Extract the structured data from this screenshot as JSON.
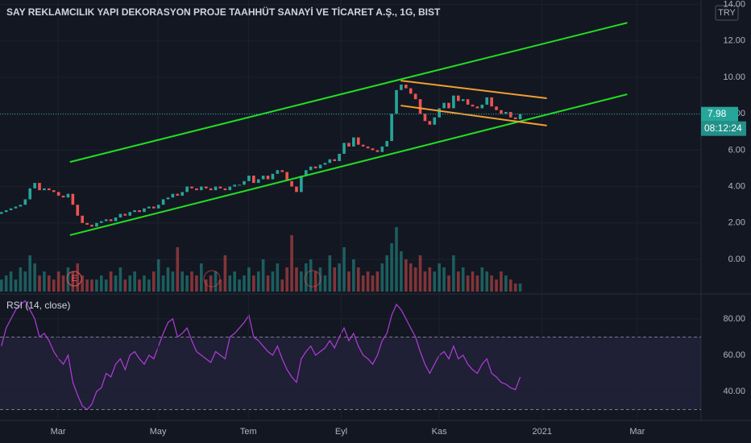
{
  "chart_data": {
    "type": "candlestick",
    "title": "SAY REKLAMCILIK YAPI DEKORASYON PROJE TAAHHÜT SANAYİ VE TİCARET A.Ş., 1G, BIST",
    "currency": "TRY",
    "last_price": 7.98,
    "countdown": "08:12:24",
    "up_color": "#26a69a",
    "down_color": "#ef5350",
    "xlim": [
      -0.3,
      147
    ],
    "xticks": [
      {
        "value": 11.9,
        "label": "Mar"
      },
      {
        "value": 32.9,
        "label": "May"
      },
      {
        "value": 51.9,
        "label": "Tem"
      },
      {
        "value": 71.4,
        "label": "Eyl"
      },
      {
        "value": 92,
        "label": "Kas"
      },
      {
        "value": 113.6,
        "label": "2021"
      },
      {
        "value": 133.6,
        "label": "Mar"
      }
    ],
    "ylim": [
      -1.77,
      14.25
    ],
    "yticks": [
      {
        "value": 0,
        "label": "0.00"
      },
      {
        "value": 2,
        "label": "2.00"
      },
      {
        "value": 4,
        "label": "4.00"
      },
      {
        "value": 6,
        "label": "6.00"
      },
      {
        "value": 8,
        "label": "8.00"
      },
      {
        "value": 10,
        "label": "10.00"
      },
      {
        "value": 12,
        "label": "12.00"
      },
      {
        "value": 14,
        "label": "14.00"
      }
    ],
    "open": [
      2.5,
      2.6,
      2.7,
      2.8,
      2.9,
      3.0,
      3.3,
      3.9,
      4.2,
      3.8,
      3.9,
      3.8,
      3.7,
      3.5,
      3.4,
      3.6,
      3.0,
      2.4,
      2.0,
      1.9,
      1.8,
      2.0,
      2.1,
      2.2,
      2.1,
      2.3,
      2.5,
      2.4,
      2.6,
      2.7,
      2.6,
      2.8,
      2.9,
      2.8,
      3.0,
      3.3,
      3.4,
      3.6,
      3.5,
      3.7,
      4.0,
      3.9,
      3.8,
      4.0,
      3.9,
      3.8,
      4.0,
      3.9,
      3.8,
      4.0,
      4.1,
      4.1,
      4.3,
      4.6,
      4.2,
      4.4,
      4.6,
      4.4,
      4.7,
      4.9,
      4.8,
      4.3,
      4.0,
      3.7,
      4.6,
      4.9,
      5.1,
      5.0,
      5.2,
      5.3,
      5.5,
      5.4,
      5.8,
      6.4,
      6.2,
      6.7,
      6.3,
      6.2,
      6.1,
      6.0,
      5.9,
      6.2,
      6.5,
      8.0,
      9.3,
      9.6,
      9.4,
      9.1,
      8.8,
      8.0,
      7.6,
      7.4,
      7.8,
      8.3,
      8.6,
      8.3,
      9.0,
      8.7,
      8.8,
      8.5,
      8.4,
      8.3,
      8.5,
      8.9,
      8.4,
      8.2,
      8.0,
      8.1,
      7.8,
      7.7
    ],
    "close": [
      2.6,
      2.7,
      2.8,
      2.9,
      3.0,
      3.3,
      3.9,
      4.2,
      3.8,
      3.9,
      3.8,
      3.7,
      3.5,
      3.4,
      3.6,
      3.0,
      2.4,
      2.0,
      1.9,
      1.8,
      2.0,
      2.1,
      2.2,
      2.1,
      2.3,
      2.5,
      2.4,
      2.6,
      2.7,
      2.6,
      2.8,
      2.9,
      2.8,
      3.0,
      3.3,
      3.4,
      3.6,
      3.5,
      3.7,
      4.0,
      3.9,
      3.8,
      4.0,
      3.9,
      3.8,
      4.0,
      3.9,
      3.8,
      4.0,
      4.1,
      4.1,
      4.3,
      4.6,
      4.2,
      4.4,
      4.6,
      4.4,
      4.7,
      4.9,
      4.8,
      4.3,
      4.0,
      3.7,
      4.6,
      4.9,
      5.1,
      5.0,
      5.2,
      5.3,
      5.5,
      5.4,
      5.8,
      6.4,
      6.2,
      6.7,
      6.3,
      6.2,
      6.1,
      6.0,
      5.9,
      6.2,
      6.5,
      8.0,
      9.3,
      9.6,
      9.4,
      9.1,
      8.8,
      8.0,
      7.6,
      7.4,
      7.8,
      8.3,
      8.6,
      8.3,
      9.0,
      8.7,
      8.8,
      8.5,
      8.4,
      8.3,
      8.5,
      8.9,
      8.4,
      8.2,
      8.0,
      8.1,
      7.8,
      7.7,
      7.98
    ],
    "volume": [
      3,
      4,
      5,
      3,
      6,
      5,
      9,
      7,
      4,
      5,
      4,
      3,
      5,
      4,
      6,
      5,
      7,
      4,
      3,
      3,
      3,
      4,
      3,
      5,
      4,
      6,
      3,
      4,
      5,
      3,
      4,
      3,
      5,
      8,
      4,
      6,
      5,
      11,
      5,
      4,
      5,
      4,
      7,
      3,
      4,
      5,
      3,
      9,
      4,
      5,
      3,
      4,
      6,
      4,
      5,
      8,
      4,
      5,
      7,
      3,
      6,
      14,
      6,
      5,
      7,
      8,
      5,
      6,
      4,
      9,
      6,
      7,
      11,
      5,
      8,
      6,
      4,
      5,
      4,
      5,
      7,
      9,
      12,
      16,
      10,
      8,
      7,
      6,
      9,
      5,
      6,
      5,
      7,
      6,
      4,
      9,
      5,
      6,
      4,
      5,
      4,
      6,
      5,
      4,
      3,
      5,
      4,
      3,
      2,
      2
    ],
    "volume_ylim": [
      0,
      20
    ],
    "trend_lines": [
      {
        "color": "#22dd22",
        "x": [
          14.4,
          131.5
        ],
        "y": [
          5.35,
          13.0
        ]
      },
      {
        "color": "#22dd22",
        "x": [
          14.4,
          131.5
        ],
        "y": [
          1.33,
          9.07
        ]
      },
      {
        "color": "#f0a030",
        "x": [
          83.9,
          114.6
        ],
        "y": [
          9.82,
          8.85
        ]
      },
      {
        "color": "#f0a030",
        "x": [
          83.9,
          114.6
        ],
        "y": [
          8.45,
          7.35
        ]
      }
    ],
    "events": [
      {
        "x": 15.3,
        "label": "E"
      }
    ],
    "rsi": {
      "title": "RSI (14, close)",
      "color": "#b03ddb",
      "values": [
        65,
        75,
        80,
        85,
        88,
        90,
        85,
        80,
        70,
        72,
        68,
        62,
        58,
        55,
        60,
        45,
        38,
        32,
        30,
        33,
        40,
        42,
        50,
        48,
        55,
        58,
        52,
        60,
        62,
        58,
        55,
        60,
        58,
        65,
        72,
        78,
        80,
        70,
        72,
        75,
        68,
        62,
        60,
        58,
        56,
        62,
        60,
        58,
        70,
        72,
        75,
        78,
        82,
        70,
        68,
        65,
        62,
        60,
        65,
        58,
        52,
        48,
        45,
        58,
        62,
        65,
        60,
        62,
        64,
        68,
        64,
        70,
        75,
        68,
        72,
        65,
        60,
        58,
        55,
        60,
        68,
        72,
        82,
        88,
        85,
        80,
        75,
        70,
        62,
        55,
        50,
        55,
        60,
        62,
        58,
        65,
        58,
        60,
        55,
        52,
        50,
        55,
        58,
        50,
        48,
        45,
        44,
        42,
        41,
        48
      ],
      "ylim": [
        24.9,
        92.4
      ],
      "yticks": [
        {
          "value": 40,
          "label": "40.00"
        },
        {
          "value": 60,
          "label": "60.00"
        },
        {
          "value": 80,
          "label": "80.00"
        }
      ],
      "bands": [
        70,
        30
      ]
    }
  }
}
